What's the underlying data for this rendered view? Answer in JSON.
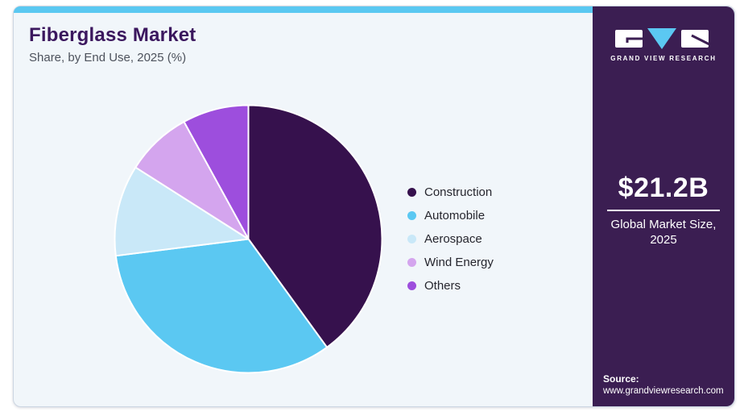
{
  "header": {
    "title": "Fiberglass Market",
    "subtitle": "Share, by End Use, 2025 (%)"
  },
  "chart_data": {
    "type": "pie",
    "title": "Fiberglass Market Share, by End Use, 2025 (%)",
    "unit": "percent",
    "start_angle_deg": 0,
    "direction": "clockwise",
    "legend_position": "right",
    "series": [
      {
        "name": "Construction",
        "value": 40,
        "color": "#36114d"
      },
      {
        "name": "Automobile",
        "value": 33,
        "color": "#5bc8f2"
      },
      {
        "name": "Aerospace",
        "value": 11,
        "color": "#c9e8f8"
      },
      {
        "name": "Wind Energy",
        "value": 8,
        "color": "#d4a5ee"
      },
      {
        "name": "Others",
        "value": 8,
        "color": "#9d4edd"
      }
    ]
  },
  "sidebar": {
    "logo": {
      "brand": "GRAND VIEW RESEARCH"
    },
    "market_size": {
      "value": "$21.2B",
      "label": "Global Market Size, 2025"
    },
    "source": {
      "label": "Source:",
      "url": "www.grandviewresearch.com"
    }
  },
  "colors": {
    "accent_bar": "#5ac8f1",
    "card_background": "#f1f6fa",
    "sidebar_background": "#3b1e52",
    "title_text": "#3b175e",
    "logo_triangle": "#5bc8f2"
  }
}
